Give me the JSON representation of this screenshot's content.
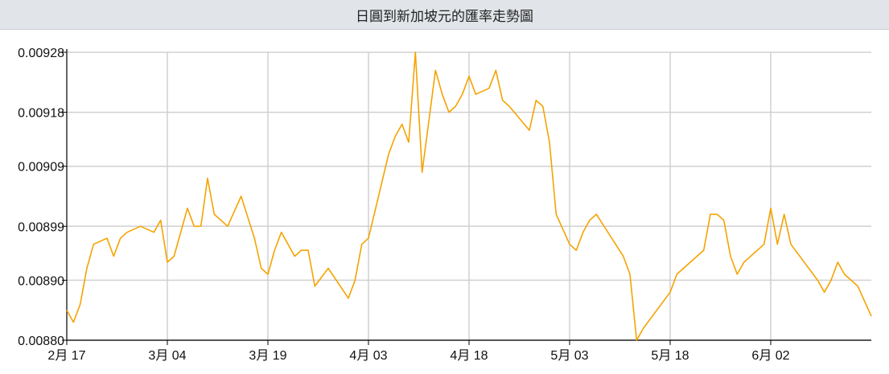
{
  "window": {
    "title": "日圓到新加坡元的匯率走勢圖"
  },
  "chart_data": {
    "type": "line",
    "title": "日圓到新加坡元的匯率走勢圖",
    "xlabel": "",
    "ylabel": "",
    "ylim": [
      0.0088,
      0.00928
    ],
    "y_ticks": [
      "0.00880",
      "0.00890",
      "0.00899",
      "0.00909",
      "0.00918",
      "0.00928"
    ],
    "y_tick_values": [
      0.0088,
      0.0089,
      0.00899,
      0.00909,
      0.00918,
      0.00928
    ],
    "x_ticks": [
      "2月 17",
      "3月 04",
      "3月 19",
      "4月 03",
      "4月 18",
      "5月 03",
      "5月 18",
      "6月 02"
    ],
    "x_tick_days": [
      0,
      15,
      30,
      45,
      60,
      75,
      90,
      105
    ],
    "xlim_days": [
      0,
      120
    ],
    "grid": true,
    "line_color": "#f5a300",
    "series": [
      {
        "day": [
          0,
          1,
          2,
          3,
          4,
          6,
          7,
          8,
          9,
          11,
          13,
          14,
          15,
          16,
          18,
          19,
          20,
          21,
          22,
          24,
          26,
          28,
          29,
          30,
          31,
          32,
          34,
          35,
          36,
          37,
          39,
          42,
          43,
          44,
          45,
          48,
          49,
          50,
          51,
          52,
          53,
          55,
          56,
          57,
          58,
          59,
          60,
          61,
          63,
          64,
          65,
          66,
          69,
          70,
          71,
          72,
          73,
          75,
          76,
          77,
          78,
          79,
          83,
          84,
          85,
          86,
          90,
          91,
          95,
          96,
          97,
          98,
          99,
          100,
          101,
          104,
          105,
          106,
          107,
          108,
          112,
          113,
          114,
          115,
          116,
          118,
          120
        ],
        "value": [
          0.00885,
          0.00883,
          0.00886,
          0.00892,
          0.00896,
          0.00897,
          0.00894,
          0.00897,
          0.00898,
          0.00899,
          0.00898,
          0.009,
          0.00893,
          0.00894,
          0.00902,
          0.00899,
          0.00899,
          0.00907,
          0.00901,
          0.00899,
          0.00904,
          0.00897,
          0.00892,
          0.00891,
          0.00895,
          0.00898,
          0.00894,
          0.00895,
          0.00895,
          0.00889,
          0.00892,
          0.00887,
          0.0089,
          0.00896,
          0.00897,
          0.00911,
          0.00914,
          0.00916,
          0.00913,
          0.00928,
          0.00908,
          0.00925,
          0.00921,
          0.00918,
          0.00919,
          0.00921,
          0.00924,
          0.00921,
          0.00922,
          0.00925,
          0.0092,
          0.00919,
          0.00915,
          0.0092,
          0.00919,
          0.00913,
          0.00901,
          0.00896,
          0.00895,
          0.00898,
          0.009,
          0.00901,
          0.00894,
          0.00891,
          0.0088,
          0.00882,
          0.00888,
          0.00891,
          0.00895,
          0.00901,
          0.00901,
          0.009,
          0.00894,
          0.00891,
          0.00893,
          0.00896,
          0.00902,
          0.00896,
          0.00901,
          0.00896,
          0.0089,
          0.00888,
          0.0089,
          0.00893,
          0.00891,
          0.00889,
          0.00884
        ]
      }
    ]
  }
}
